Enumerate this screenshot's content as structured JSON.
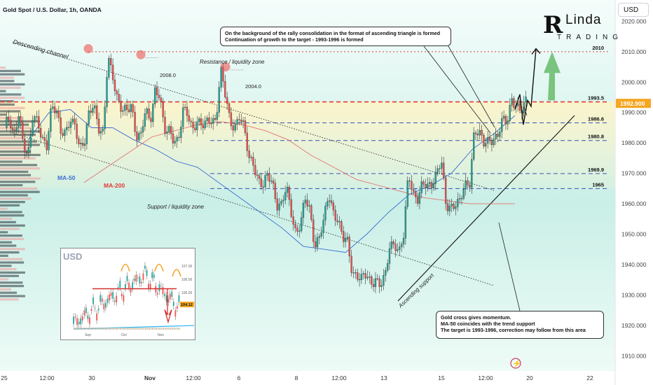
{
  "header": {
    "title": "Gold Spot / U.S. Dollar, 1h, OANDA",
    "currency_button": "USD"
  },
  "logo": {
    "letter": "R",
    "name": "Linda",
    "sub": "TRADING"
  },
  "callouts": {
    "top_line1": "On the background of the rally consolidation in the format of ascending triangle is formed",
    "top_line2": "Continuation of growth to the target - 1993-1996 is formed",
    "bottom_line1": "Gold cross gives momentum.",
    "bottom_line2": "MA-50 coincides with the trend support",
    "bottom_line3": "The target is 1993-1996, correction may follow from this area"
  },
  "annotations": {
    "descending_channel": "Descending channel",
    "resistance_zone": "Resistance / liquidity zone",
    "support_zone": "Support / liquidity zone",
    "ascending_support": "Ascending support",
    "ma50": "MA-50",
    "ma200": "MA-200",
    "peak1": "2008.0",
    "peak2": "2004.0"
  },
  "price_badge": {
    "value": "1992.900",
    "color": "#f5a623"
  },
  "colors": {
    "up": "#26a69a",
    "down": "#ef5350",
    "ma50": "#3b6fd4",
    "ma200": "#e57373",
    "level": "#3f51b5",
    "resistance": "#e53935",
    "arrow_green": "#66bb6a"
  },
  "inset": {
    "title": "USD",
    "y_ticks": [
      "107.00",
      "106.00",
      "105.00"
    ],
    "x_ticks": [
      "Sep",
      "Oct",
      "Nov"
    ],
    "last_price": "104.12"
  },
  "chart_data": {
    "type": "candlestick",
    "title": "Gold Spot / U.S. Dollar, 1h, OANDA",
    "y_range": [
      1905,
      2027
    ],
    "y_ticks": [
      1910,
      1920,
      1930,
      1940,
      1950,
      1960,
      1970,
      1980,
      1990,
      2000,
      2010,
      2020
    ],
    "y_tick_labels": [
      "1910.000",
      "1920.000",
      "1930.000",
      "1940.000",
      "1950.000",
      "1960.000",
      "1970.000",
      "1980.000",
      "1990.000",
      "2000.000",
      "2010.000",
      "2020.000"
    ],
    "x_tick_labels": [
      "25",
      "12:00",
      "30",
      "Nov",
      "12:00",
      "6",
      "8",
      "12:00",
      "13",
      "15",
      "12:00",
      "20",
      "22"
    ],
    "levels": [
      {
        "label": "2010",
        "value": 2010,
        "style": "dotted",
        "color": "#e53935"
      },
      {
        "label": "1993.5",
        "value": 1993.5,
        "style": "dashed",
        "color": "#e53935"
      },
      {
        "label": "1986.6",
        "value": 1986.6,
        "style": "dashed",
        "color": "#3f51b5"
      },
      {
        "label": "1980.8",
        "value": 1980.8,
        "style": "dashed",
        "color": "#3f51b5"
      },
      {
        "label": "1969.9",
        "value": 1969.9,
        "style": "dashed",
        "color": "#3f51b5"
      },
      {
        "label": "1965",
        "value": 1965,
        "style": "dashed",
        "color": "#3f51b5"
      }
    ],
    "last_price": 1992.9,
    "trend_path": [
      [
        1985,
        1988
      ],
      [
        1983,
        1990
      ],
      [
        1978,
        1975
      ],
      [
        1990,
        1988
      ],
      [
        1980,
        1978
      ],
      [
        1993,
        1992
      ],
      [
        1983,
        1982
      ],
      [
        1988,
        1987
      ],
      [
        1978,
        1979
      ],
      [
        1990,
        1994
      ],
      [
        1985,
        1982
      ],
      [
        2008,
        2003
      ],
      [
        1995,
        1990
      ],
      [
        1990,
        1993
      ],
      [
        1983,
        1982
      ],
      [
        1990,
        1987
      ],
      [
        1998,
        1996
      ],
      [
        1983,
        1984
      ],
      [
        1982,
        1981
      ],
      [
        1990,
        1989
      ],
      [
        1985,
        1988
      ],
      [
        1985,
        1986
      ],
      [
        1988,
        1988
      ],
      [
        2004,
        1995
      ],
      [
        1987,
        1986
      ],
      [
        1989,
        1984
      ],
      [
        1975,
        1974
      ],
      [
        1968,
        1965
      ],
      [
        1969,
        1968
      ],
      [
        1960,
        1959
      ],
      [
        1965,
        1958
      ],
      [
        1951,
        1953
      ],
      [
        1961,
        1958
      ],
      [
        1947,
        1949
      ],
      [
        1954,
        1963
      ],
      [
        1958,
        1955
      ],
      [
        1948,
        1947
      ],
      [
        1938,
        1937
      ],
      [
        1935,
        1936
      ],
      [
        1934,
        1936
      ],
      [
        1933,
        1935
      ],
      [
        1946,
        1948
      ],
      [
        1944,
        1949
      ],
      [
        1970,
        1964
      ],
      [
        1962,
        1966
      ],
      [
        1965,
        1967
      ],
      [
        1971,
        1974
      ],
      [
        1958,
        1959
      ],
      [
        1961,
        1961
      ],
      [
        1965,
        1966
      ],
      [
        1985,
        1984
      ],
      [
        1979,
        1980
      ],
      [
        1982,
        1983
      ],
      [
        1987,
        1986
      ],
      [
        1995,
        1993
      ],
      [
        1990,
        1993
      ]
    ],
    "ma50_path": [
      [
        1981,
        1990
      ],
      [
        1991,
        1985
      ],
      [
        1985,
        1981
      ],
      [
        1978,
        1974
      ],
      [
        1972,
        1967
      ],
      [
        1962,
        1957
      ],
      [
        1952,
        1946
      ],
      [
        1945,
        1944
      ],
      [
        1950,
        1957
      ],
      [
        1963,
        1966
      ],
      [
        1970,
        1978
      ],
      [
        1983,
        1989
      ]
    ],
    "ma200_path": [
      [
        1967,
        1972
      ],
      [
        1977,
        1982
      ],
      [
        1984,
        1986
      ],
      [
        1987,
        1986
      ],
      [
        1984,
        1981
      ],
      [
        1976,
        1972
      ],
      [
        1968,
        1966
      ],
      [
        1964,
        1962
      ],
      [
        1961,
        1960
      ],
      [
        1960,
        1960
      ]
    ],
    "channel": {
      "upper": [
        [
          2011,
          1965
        ]
      ],
      "lower": [
        [
          1987,
          1936
        ]
      ]
    },
    "ascending_support": [
      [
        1929,
        1993
      ]
    ]
  }
}
